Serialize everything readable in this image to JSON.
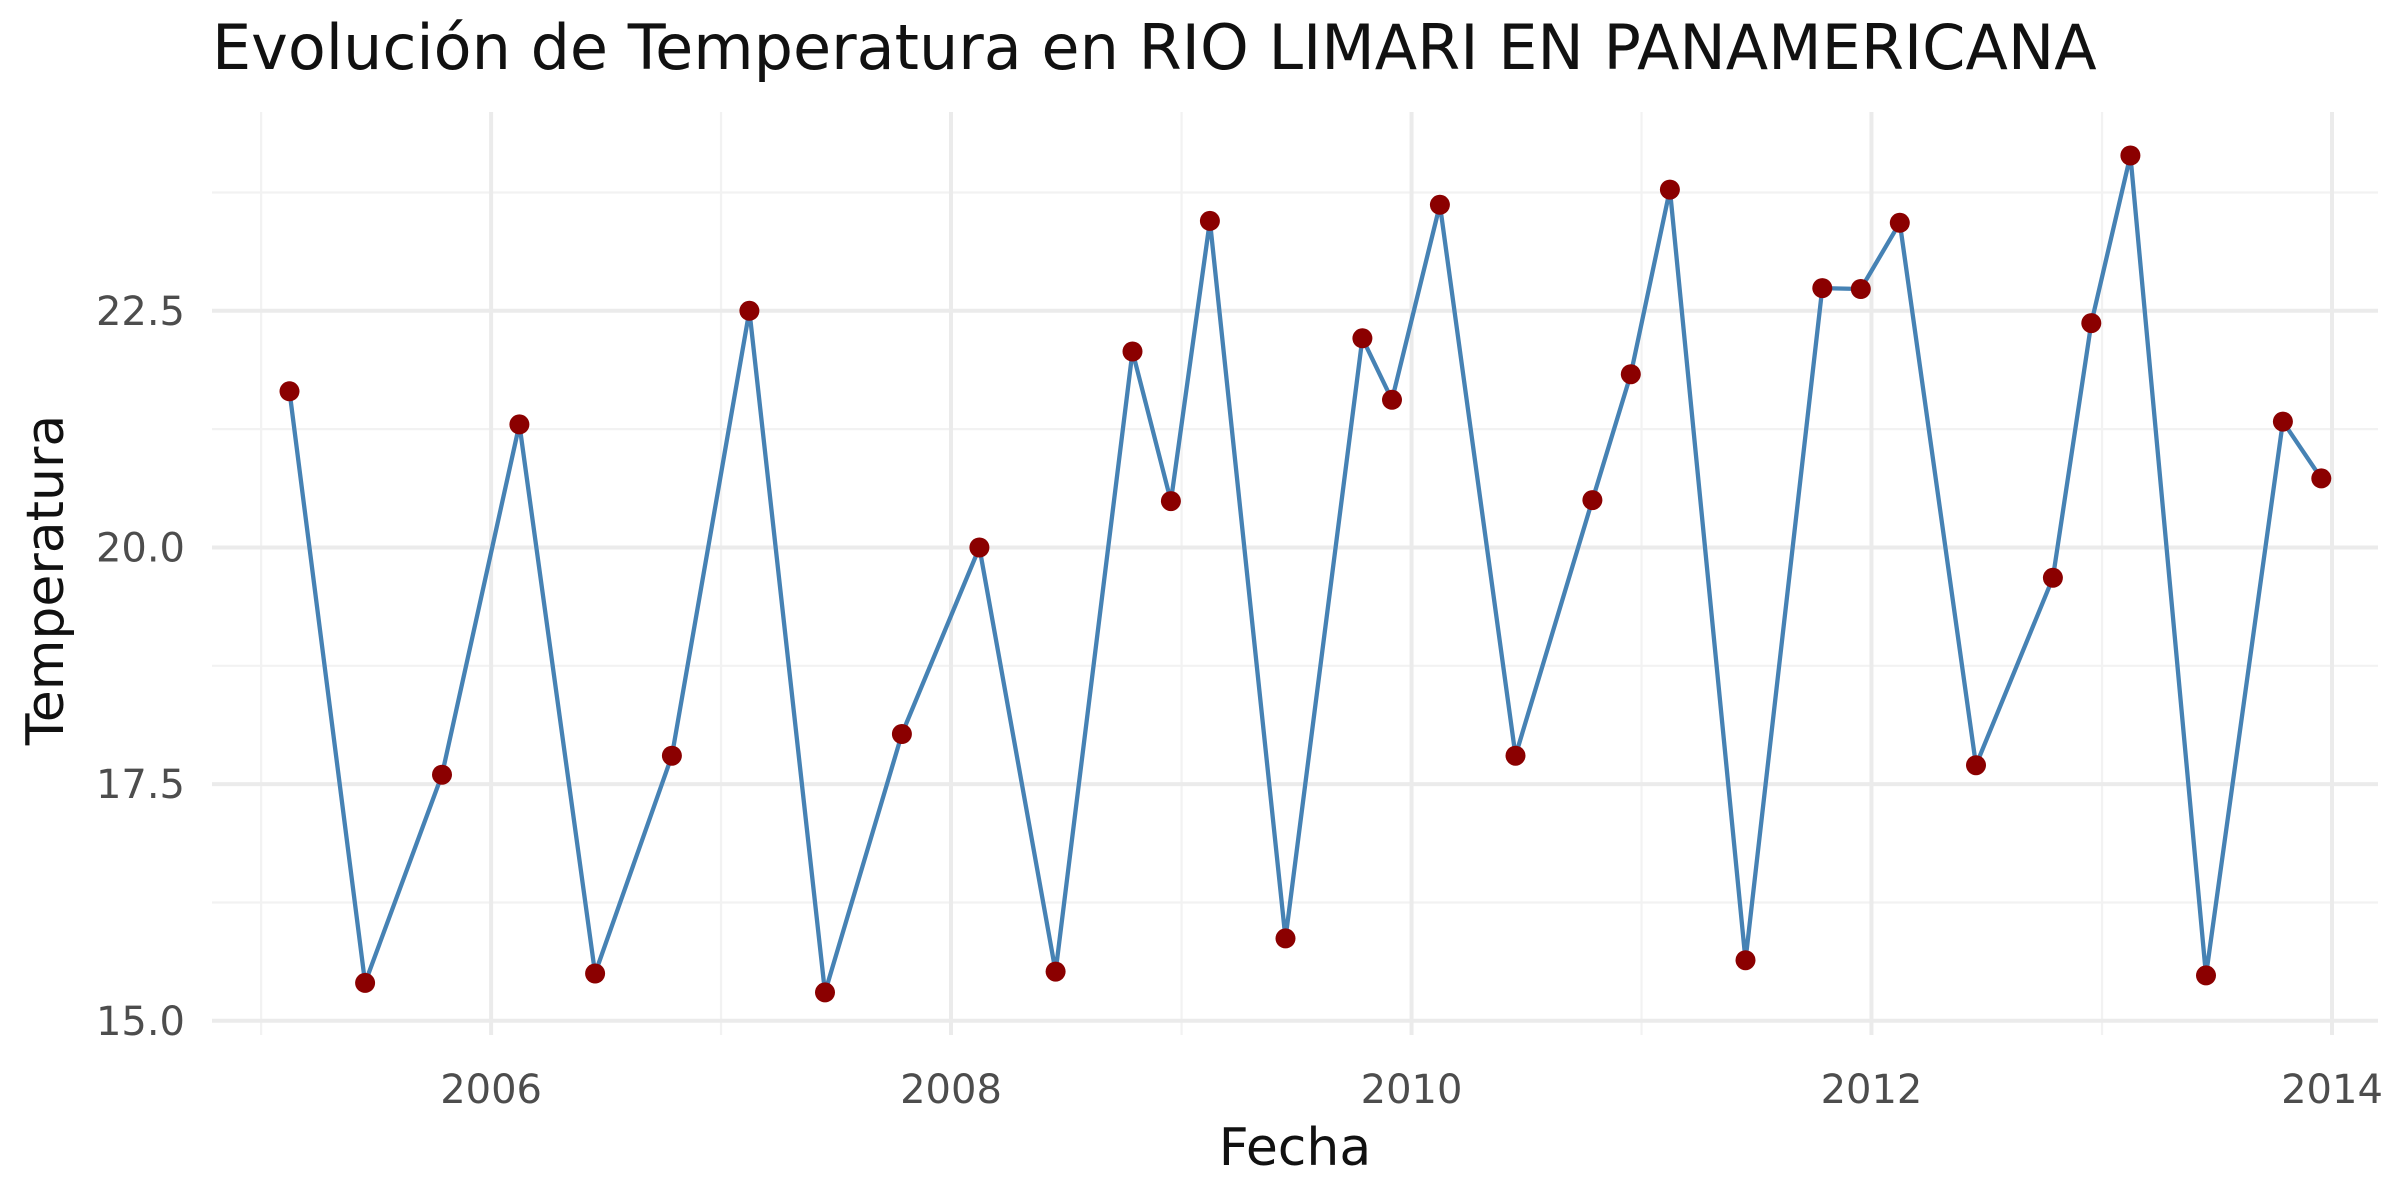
{
  "chart_data": {
    "type": "line",
    "title": "Evolución de Temperatura en RIO LIMARI EN PANAMERICANA",
    "xlabel": "Fecha",
    "ylabel": "Temperatura",
    "x_ticks": [
      "2006",
      "2008",
      "2010",
      "2012",
      "2014"
    ],
    "y_ticks": [
      "15.0",
      "17.5",
      "20.0",
      "22.5"
    ],
    "xlim": [
      "2004-10-15",
      "2014-03-15"
    ],
    "ylim": [
      14.85,
      24.6
    ],
    "grid": true,
    "legend": "none",
    "colors": {
      "line": "#4682b4",
      "points": "#8b0000"
    },
    "series": [
      {
        "x": [
          "2005-02-15",
          "2005-06-15",
          "2005-10-15",
          "2006-02-15",
          "2006-06-15",
          "2006-10-15",
          "2007-02-15",
          "2007-06-15",
          "2007-10-15",
          "2008-02-15",
          "2008-06-15",
          "2008-10-15",
          "2008-12-15",
          "2009-02-15",
          "2009-06-15",
          "2009-10-15",
          "2009-12-01",
          "2010-02-15",
          "2010-06-15",
          "2010-10-15",
          "2010-12-15",
          "2011-02-15",
          "2011-06-15",
          "2011-10-15",
          "2011-12-15",
          "2012-02-15",
          "2012-06-15",
          "2012-10-15",
          "2012-12-15",
          "2013-02-15",
          "2013-06-15",
          "2013-10-15",
          "2013-12-15"
        ],
        "y": [
          21.65,
          15.4,
          17.6,
          21.3,
          15.5,
          17.8,
          22.5,
          15.3,
          18.03,
          20.0,
          15.52,
          22.07,
          20.49,
          23.45,
          15.87,
          22.21,
          21.56,
          23.62,
          17.8,
          20.5,
          21.83,
          23.78,
          15.64,
          22.74,
          22.73,
          23.43,
          17.7,
          19.68,
          22.37,
          24.14,
          15.48,
          21.33,
          20.73
        ]
      }
    ]
  }
}
